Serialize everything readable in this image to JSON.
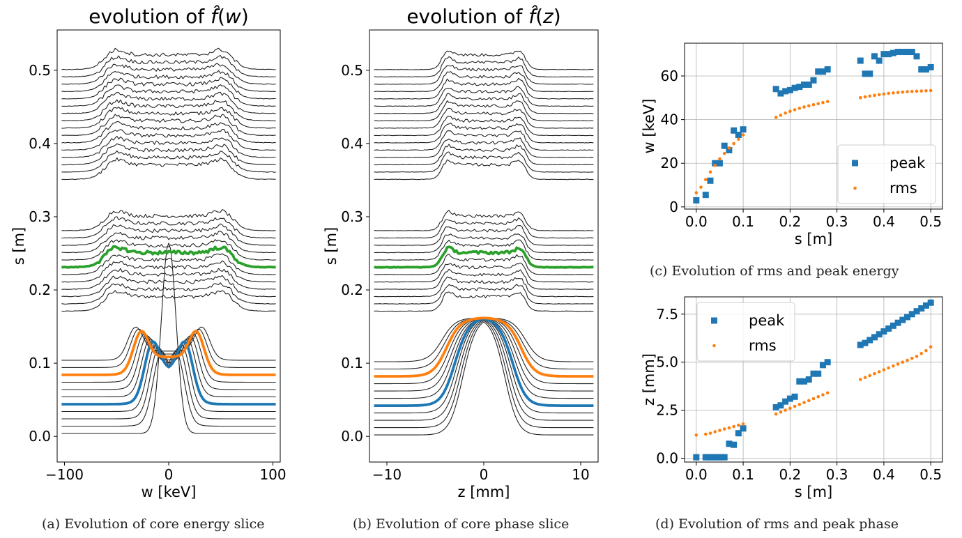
{
  "chart_data": [
    {
      "id": "a",
      "type": "line",
      "title": "evolution of f̂(w)",
      "title_prefix": "evolution of ",
      "title_var": "w",
      "xlabel": "w [keV]",
      "ylabel": "s [m]",
      "xlim": [
        -107,
        107
      ],
      "ylim": [
        -0.035,
        0.555
      ],
      "xticks": [
        -100,
        0,
        100
      ],
      "xtick_labels": [
        "−100",
        "0",
        "100"
      ],
      "yticks": [
        0.0,
        0.1,
        0.2,
        0.3,
        0.4,
        0.5
      ],
      "ytick_labels": [
        "0.0",
        "0.1",
        "0.2",
        "0.3",
        "0.4",
        "0.5"
      ],
      "baselines_s": [
        0.0,
        0.01,
        0.02,
        0.03,
        0.04,
        0.05,
        0.06,
        0.07,
        0.08,
        0.09,
        0.1,
        0.17,
        0.18,
        0.19,
        0.2,
        0.21,
        0.22,
        0.23,
        0.24,
        0.25,
        0.26,
        0.27,
        0.28,
        0.35,
        0.36,
        0.37,
        0.38,
        0.39,
        0.4,
        0.41,
        0.42,
        0.43,
        0.44,
        0.45,
        0.46,
        0.47,
        0.48,
        0.49,
        0.5
      ],
      "highlighted": [
        {
          "s": 0.04,
          "color": "#1f77b4"
        },
        {
          "s": 0.08,
          "color": "#ff7f0e"
        },
        {
          "s": 0.23,
          "color": "#2ca02c"
        }
      ],
      "caption": "(a) Evolution of core energy slice"
    },
    {
      "id": "b",
      "type": "line",
      "title": "evolution of f̂(z)",
      "title_prefix": "evolution of ",
      "title_var": "z",
      "xlabel": "z [mm]",
      "ylabel": "s [m]",
      "xlim": [
        -11.8,
        11.8
      ],
      "ylim": [
        -0.035,
        0.555
      ],
      "xticks": [
        -10,
        0,
        10
      ],
      "xtick_labels": [
        "−10",
        "0",
        "10"
      ],
      "yticks": [
        0.0,
        0.1,
        0.2,
        0.3,
        0.4,
        0.5
      ],
      "ytick_labels": [
        "0.0",
        "0.1",
        "0.2",
        "0.3",
        "0.4",
        "0.5"
      ],
      "baselines_s": [
        0.0,
        0.01,
        0.02,
        0.03,
        0.04,
        0.05,
        0.06,
        0.07,
        0.08,
        0.09,
        0.1,
        0.17,
        0.18,
        0.19,
        0.2,
        0.21,
        0.22,
        0.23,
        0.24,
        0.25,
        0.26,
        0.27,
        0.28,
        0.35,
        0.36,
        0.37,
        0.38,
        0.39,
        0.4,
        0.41,
        0.42,
        0.43,
        0.44,
        0.45,
        0.46,
        0.47,
        0.48,
        0.49,
        0.5
      ],
      "highlighted": [
        {
          "s": 0.04,
          "color": "#1f77b4"
        },
        {
          "s": 0.08,
          "color": "#ff7f0e"
        },
        {
          "s": 0.23,
          "color": "#2ca02c"
        }
      ],
      "caption": "(b) Evolution of core phase slice"
    },
    {
      "id": "c",
      "type": "scatter",
      "xlabel": "s [m]",
      "ylabel": "w [keV]",
      "xlim": [
        -0.025,
        0.525
      ],
      "ylim": [
        -1,
        75
      ],
      "xticks": [
        0.0,
        0.1,
        0.2,
        0.3,
        0.4,
        0.5
      ],
      "xtick_labels": [
        "0.0",
        "0.1",
        "0.2",
        "0.3",
        "0.4",
        "0.5"
      ],
      "yticks": [
        0,
        20,
        40,
        60
      ],
      "ytick_labels": [
        "0",
        "20",
        "40",
        "60"
      ],
      "grid": true,
      "legend": "lower right",
      "series": [
        {
          "name": "peak",
          "color": "#1f77b4",
          "marker": "square",
          "x": [
            0.0,
            0.02,
            0.03,
            0.04,
            0.05,
            0.06,
            0.07,
            0.08,
            0.09,
            0.1,
            0.17,
            0.18,
            0.19,
            0.2,
            0.21,
            0.22,
            0.23,
            0.24,
            0.25,
            0.26,
            0.27,
            0.28,
            0.35,
            0.36,
            0.37,
            0.38,
            0.39,
            0.4,
            0.41,
            0.42,
            0.43,
            0.44,
            0.45,
            0.46,
            0.47,
            0.48,
            0.49,
            0.5
          ],
          "y": [
            3,
            5.5,
            12,
            20,
            20,
            28,
            26,
            35,
            33,
            35.5,
            54,
            52,
            53,
            53.5,
            54.5,
            55,
            56,
            56,
            58,
            62,
            62,
            63,
            67,
            61,
            61,
            69,
            67,
            70,
            70,
            70.5,
            71,
            71,
            71,
            71,
            69,
            63,
            63,
            64
          ]
        },
        {
          "name": "rms",
          "color": "#ff7f0e",
          "marker": "dot",
          "x": [
            0.0,
            0.01,
            0.02,
            0.03,
            0.04,
            0.05,
            0.06,
            0.07,
            0.08,
            0.09,
            0.1,
            0.17,
            0.18,
            0.19,
            0.2,
            0.21,
            0.22,
            0.23,
            0.24,
            0.25,
            0.26,
            0.27,
            0.28,
            0.35,
            0.36,
            0.37,
            0.38,
            0.39,
            0.4,
            0.41,
            0.42,
            0.43,
            0.44,
            0.45,
            0.46,
            0.47,
            0.48,
            0.49,
            0.5
          ],
          "y": [
            6.5,
            9,
            12.5,
            16,
            19,
            22,
            24.5,
            27,
            29,
            31,
            33,
            41,
            42,
            43,
            43.8,
            44.5,
            45.2,
            45.8,
            46.3,
            46.8,
            47.3,
            47.8,
            48.3,
            50,
            50.4,
            50.8,
            51.1,
            51.4,
            51.7,
            52,
            52.2,
            52.4,
            52.6,
            52.8,
            52.9,
            53,
            53.1,
            53.2,
            53.3
          ]
        }
      ],
      "caption": "(c) Evolution of rms and peak energy"
    },
    {
      "id": "d",
      "type": "scatter",
      "xlabel": "s [m]",
      "ylabel": "z [mm]",
      "xlim": [
        -0.025,
        0.525
      ],
      "ylim": [
        -0.2,
        8.4
      ],
      "xticks": [
        0.0,
        0.1,
        0.2,
        0.3,
        0.4,
        0.5
      ],
      "xtick_labels": [
        "0.0",
        "0.1",
        "0.2",
        "0.3",
        "0.4",
        "0.5"
      ],
      "yticks": [
        0.0,
        2.5,
        5.0,
        7.5
      ],
      "ytick_labels": [
        "0.0",
        "2.5",
        "5.0",
        "7.5"
      ],
      "grid": true,
      "legend": "upper left",
      "series": [
        {
          "name": "peak",
          "color": "#1f77b4",
          "marker": "square",
          "x": [
            0.0,
            0.02,
            0.025,
            0.03,
            0.035,
            0.04,
            0.045,
            0.05,
            0.055,
            0.06,
            0.07,
            0.08,
            0.09,
            0.1,
            0.17,
            0.18,
            0.19,
            0.2,
            0.21,
            0.22,
            0.23,
            0.24,
            0.25,
            0.26,
            0.27,
            0.28,
            0.35,
            0.36,
            0.37,
            0.38,
            0.39,
            0.4,
            0.41,
            0.42,
            0.43,
            0.44,
            0.45,
            0.46,
            0.47,
            0.48,
            0.49,
            0.5
          ],
          "y": [
            0.05,
            0.05,
            0.05,
            0.05,
            0.05,
            0.05,
            0.05,
            0.05,
            0.05,
            0.05,
            0.75,
            0.7,
            1.3,
            1.55,
            2.65,
            2.75,
            2.95,
            3.1,
            3.2,
            4.0,
            4.0,
            4.1,
            4.4,
            4.4,
            4.85,
            5.0,
            5.9,
            6.0,
            6.15,
            6.3,
            6.45,
            6.6,
            6.75,
            6.9,
            7.05,
            7.2,
            7.35,
            7.5,
            7.65,
            7.8,
            7.95,
            8.1
          ]
        },
        {
          "name": "rms",
          "color": "#ff7f0e",
          "marker": "dot",
          "x": [
            0.0,
            0.02,
            0.03,
            0.04,
            0.05,
            0.06,
            0.07,
            0.08,
            0.09,
            0.1,
            0.17,
            0.18,
            0.19,
            0.2,
            0.21,
            0.22,
            0.23,
            0.24,
            0.25,
            0.26,
            0.27,
            0.28,
            0.35,
            0.36,
            0.37,
            0.38,
            0.39,
            0.4,
            0.41,
            0.42,
            0.43,
            0.44,
            0.45,
            0.46,
            0.47,
            0.48,
            0.49,
            0.5
          ],
          "y": [
            1.2,
            1.25,
            1.3,
            1.38,
            1.45,
            1.52,
            1.58,
            1.65,
            1.72,
            1.78,
            2.3,
            2.4,
            2.5,
            2.6,
            2.7,
            2.8,
            2.9,
            3.0,
            3.1,
            3.2,
            3.3,
            3.4,
            4.1,
            4.2,
            4.3,
            4.4,
            4.5,
            4.6,
            4.7,
            4.8,
            4.9,
            5.0,
            5.1,
            5.2,
            5.3,
            5.45,
            5.6,
            5.8
          ]
        }
      ],
      "caption": "(d) Evolution of rms and peak phase"
    }
  ]
}
